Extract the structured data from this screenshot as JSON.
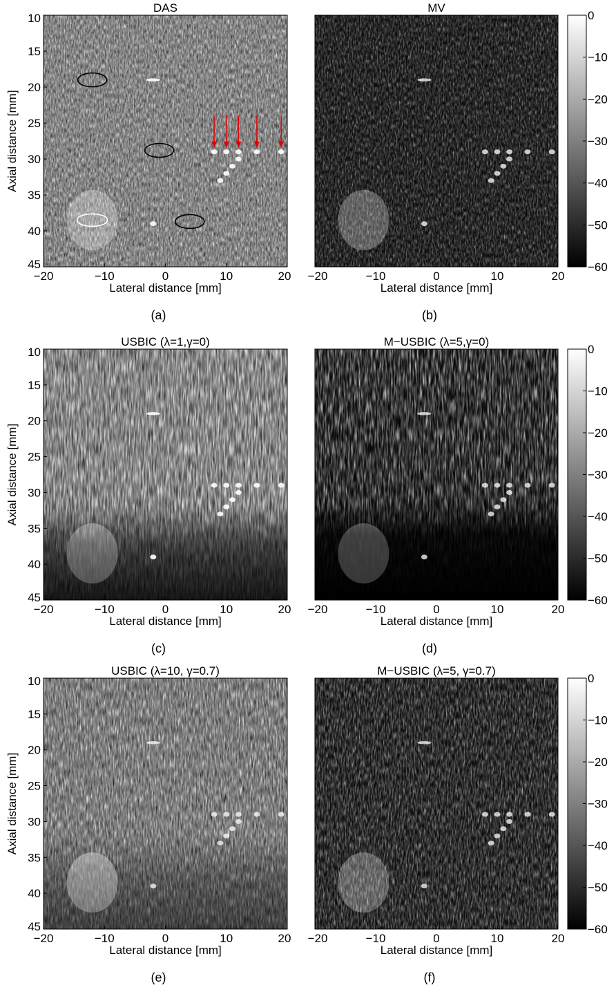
{
  "figure": {
    "panels": [
      {
        "id": "a",
        "title": "DAS",
        "label": "(a)",
        "style": "das",
        "yaxis": true,
        "markers": true
      },
      {
        "id": "b",
        "title": "MV",
        "label": "(b)",
        "style": "mv",
        "yaxis": false,
        "markers": false
      },
      {
        "id": "c",
        "title": "USBIC (λ=1,γ=0)",
        "label": "(c)",
        "style": "usbic",
        "yaxis": true,
        "markers": false
      },
      {
        "id": "d",
        "title": "M−USBIC (λ=5,γ=0)",
        "label": "(d)",
        "style": "musbic",
        "yaxis": false,
        "markers": false
      },
      {
        "id": "e",
        "title": "USBIC (λ=10, γ=0.7)",
        "label": "(e)",
        "style": "usbic07",
        "yaxis": true,
        "markers": false
      },
      {
        "id": "f",
        "title": "M−USBIC (λ=5, γ=0.7)",
        "label": "(f)",
        "style": "musbic07",
        "yaxis": false,
        "markers": false
      }
    ],
    "xlabel": "Lateral distance [mm]",
    "ylabel": "Axial distance [mm]",
    "xticks": [
      "−20",
      "−10",
      "0",
      "10",
      "20"
    ],
    "yticks": [
      "10",
      "15",
      "20",
      "25",
      "30",
      "35",
      "40",
      "45"
    ],
    "colorbar_ticks": [
      "0",
      "−10",
      "−20",
      "−30",
      "−40",
      "−50",
      "−60"
    ]
  },
  "chart_data": {
    "type": "heatmap",
    "colormap": "gray",
    "xlim": [
      -20,
      20
    ],
    "ylim": [
      45,
      10
    ],
    "clim": [
      -60,
      0
    ],
    "point_targets_mm": [
      [
        -2,
        19
      ],
      [
        8,
        29
      ],
      [
        10,
        29
      ],
      [
        12,
        29
      ],
      [
        15,
        29
      ],
      [
        19,
        29
      ],
      [
        12,
        30
      ],
      [
        11,
        31
      ],
      [
        10,
        32
      ],
      [
        9,
        33
      ],
      [
        -2,
        39
      ]
    ],
    "cyst_mm": {
      "center": [
        -12,
        38.5
      ],
      "radius": 4.2
    },
    "red_arrow_targets_mm": [
      [
        8,
        29
      ],
      [
        10,
        29
      ],
      [
        12,
        29
      ],
      [
        15,
        29
      ],
      [
        19,
        29
      ]
    ],
    "roi_ellipses_mm": [
      [
        -12,
        19,
        "black"
      ],
      [
        -1,
        28.8,
        "black"
      ],
      [
        4,
        38.7,
        "black"
      ],
      [
        -12,
        38.5,
        "white"
      ]
    ]
  }
}
